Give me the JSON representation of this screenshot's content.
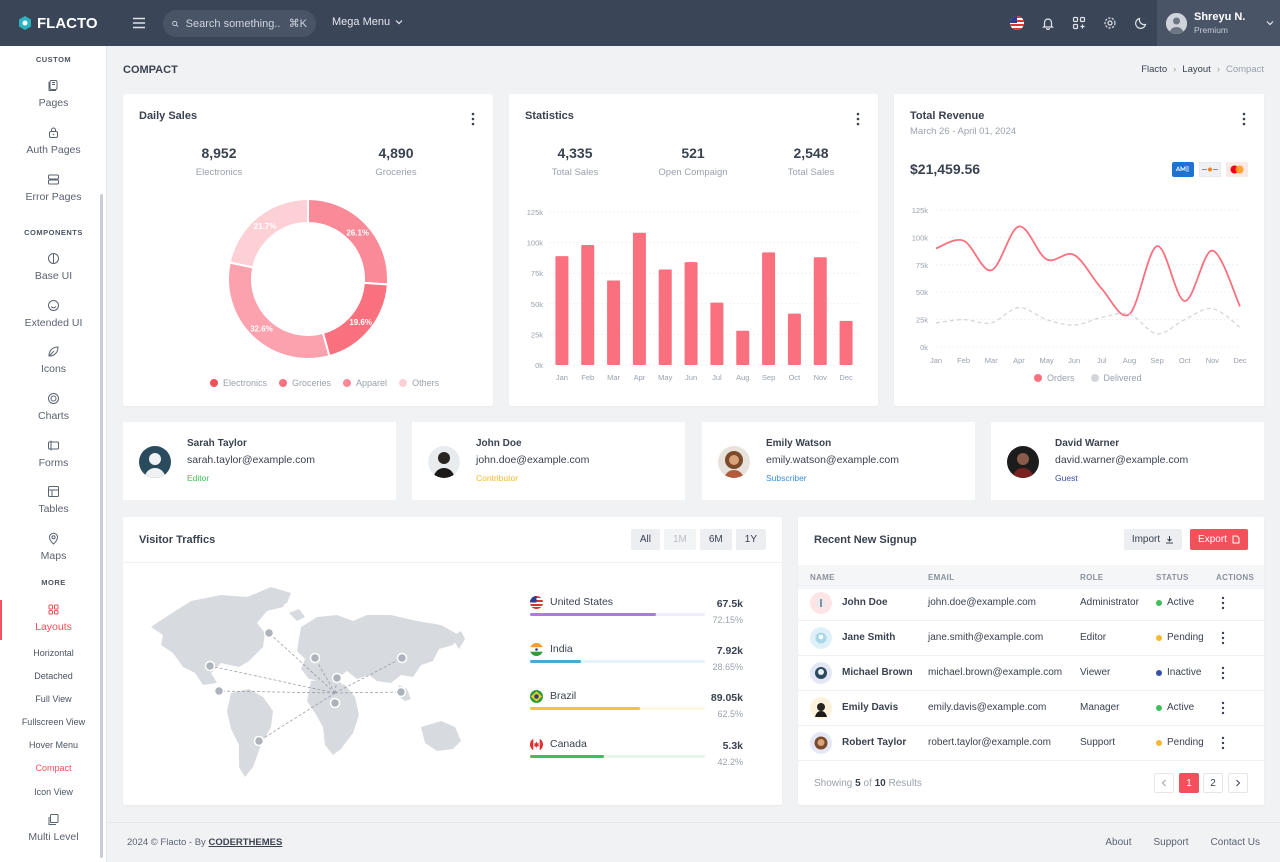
{
  "brand": {
    "name": "FLACTO"
  },
  "topbar": {
    "search_placeholder": "Search something..",
    "search_shortcut": "⌘K",
    "mega_menu": "Mega Menu",
    "user_name": "Shreyu N.",
    "user_role": "Premium",
    "icons": [
      "menu-icon",
      "search-icon",
      "us-flag-icon",
      "bell-icon",
      "apps-icon",
      "gear-icon",
      "moon-icon",
      "chevron-down-icon"
    ]
  },
  "sidebar": {
    "sections": {
      "custom": "CUSTOM",
      "components": "COMPONENTS",
      "more": "MORE"
    },
    "items": [
      {
        "label": "Pages",
        "icon": "pages-icon"
      },
      {
        "label": "Auth Pages",
        "icon": "lock-icon"
      },
      {
        "label": "Error Pages",
        "icon": "server-icon"
      },
      {
        "label": "Base UI",
        "icon": "circle-half-icon"
      },
      {
        "label": "Extended UI",
        "icon": "smile-icon"
      },
      {
        "label": "Icons",
        "icon": "leaf-icon"
      },
      {
        "label": "Charts",
        "icon": "target-icon"
      },
      {
        "label": "Forms",
        "icon": "form-icon"
      },
      {
        "label": "Tables",
        "icon": "table-icon"
      },
      {
        "label": "Maps",
        "icon": "map-pin-icon"
      },
      {
        "label": "Layouts",
        "icon": "layout-icon"
      },
      {
        "label": "Multi Level",
        "icon": "layers-icon"
      }
    ],
    "layouts_sub": [
      "Horizontal",
      "Detached",
      "Full View",
      "Fullscreen View",
      "Hover Menu",
      "Compact",
      "Icon View"
    ],
    "active_sub": "Compact"
  },
  "page": {
    "title": "COMPACT",
    "breadcrumb": [
      "Flacto",
      "Layout",
      "Compact"
    ]
  },
  "daily_sales": {
    "title": "Daily Sales",
    "stats": [
      {
        "value": "8,952",
        "label": "Electronics"
      },
      {
        "value": "4,890",
        "label": "Groceries"
      }
    ],
    "slice_labels": [
      "26.1%",
      "19.6%",
      "32.6%",
      "21.7%"
    ]
  },
  "statistics": {
    "title": "Statistics",
    "stats": [
      {
        "value": "4,335",
        "label": "Total Sales"
      },
      {
        "value": "521",
        "label": "Open Compaign"
      },
      {
        "value": "2,548",
        "label": "Total Sales"
      }
    ]
  },
  "revenue": {
    "title": "Total Revenue",
    "date_range": "March 26 - April 01, 2024",
    "amount": "$21,459.56",
    "cards": [
      "amex-icon",
      "discover-icon",
      "mastercard-icon"
    ]
  },
  "chart_data": [
    {
      "type": "pie",
      "categories": [
        "Electronics",
        "Groceries",
        "Apparel",
        "Others"
      ],
      "values": [
        26.1,
        19.6,
        32.6,
        21.7
      ],
      "colors": [
        "#fb8a98",
        "#f9717f",
        "#fba2ae",
        "#fdd0d6"
      ]
    },
    {
      "type": "bar",
      "categories": [
        "Jan",
        "Feb",
        "Mar",
        "Apr",
        "May",
        "Jun",
        "Jul",
        "Aug",
        "Sep",
        "Oct",
        "Nov",
        "Dec"
      ],
      "values": [
        89,
        98,
        69,
        108,
        78,
        84,
        51,
        28,
        92,
        42,
        88,
        36
      ],
      "y_ticks": [
        "0k",
        "25k",
        "50k",
        "75k",
        "100k",
        "125k"
      ],
      "ylim": [
        0,
        125
      ],
      "color": "#f9717f"
    },
    {
      "type": "line",
      "x": [
        "Jan",
        "Feb",
        "Mar",
        "Apr",
        "May",
        "Jun",
        "Jul",
        "Aug",
        "Sep",
        "Oct",
        "Nov",
        "Dec"
      ],
      "y_ticks": [
        "0k",
        "25k",
        "50k",
        "75k",
        "100k",
        "125k"
      ],
      "ylim": [
        0,
        125
      ],
      "series": [
        {
          "name": "Orders",
          "values": [
            90,
            97,
            70,
            110,
            80,
            84,
            53,
            30,
            92,
            42,
            88,
            37
          ],
          "color": "#f9717f"
        },
        {
          "name": "Delivered",
          "values": [
            22,
            25,
            22,
            36,
            25,
            20,
            27,
            30,
            12,
            25,
            35,
            18
          ],
          "color": "#d3d6db"
        }
      ]
    }
  ],
  "contacts": [
    {
      "name": "Sarah Taylor",
      "email": "sarah.taylor@example.com",
      "role": "Editor",
      "role_color": "#3fbf5a"
    },
    {
      "name": "John Doe",
      "email": "john.doe@example.com",
      "role": "Contributor",
      "role_color": "#f5b82e"
    },
    {
      "name": "Emily Watson",
      "email": "emily.watson@example.com",
      "role": "Subscriber",
      "role_color": "#3a8fd9"
    },
    {
      "name": "David Warner",
      "email": "david.warner@example.com",
      "role": "Guest",
      "role_color": "#3a4fa8"
    }
  ],
  "traffic": {
    "title": "Visitor Traffics",
    "filters": [
      "All",
      "1M",
      "6M",
      "1Y"
    ],
    "countries": [
      {
        "name": "United States",
        "value": "67.5k",
        "pct": "72.15%",
        "fill": 0.72,
        "color": "#a97ae8",
        "track": "#efeafc"
      },
      {
        "name": "India",
        "value": "7.92k",
        "pct": "28.65%",
        "fill": 0.29,
        "color": "#4aa8d8",
        "track": "#e7f3fa"
      },
      {
        "name": "Brazil",
        "value": "89.05k",
        "pct": "62.5%",
        "fill": 0.63,
        "color": "#f5c23a",
        "track": "#fdf6e1"
      },
      {
        "name": "Canada",
        "value": "5.3k",
        "pct": "42.2%",
        "fill": 0.42,
        "color": "#3fbf5a",
        "track": "#e6f6ea"
      }
    ]
  },
  "signup": {
    "title": "Recent New Signup",
    "import": "Import",
    "export": "Export",
    "columns": [
      "NAME",
      "EMAIL",
      "ROLE",
      "STATUS",
      "ACTIONS"
    ],
    "rows": [
      {
        "name": "John Doe",
        "email": "john.doe@example.com",
        "role": "Administrator",
        "status": "Active",
        "color": "#3fbf5a"
      },
      {
        "name": "Jane Smith",
        "email": "jane.smith@example.com",
        "role": "Editor",
        "status": "Pending",
        "color": "#f5b82e"
      },
      {
        "name": "Michael Brown",
        "email": "michael.brown@example.com",
        "role": "Viewer",
        "status": "Inactive",
        "color": "#3a4fa8"
      },
      {
        "name": "Emily Davis",
        "email": "emily.davis@example.com",
        "role": "Manager",
        "status": "Active",
        "color": "#3fbf5a"
      },
      {
        "name": "Robert Taylor",
        "email": "robert.taylor@example.com",
        "role": "Support",
        "status": "Pending",
        "color": "#f5b82e"
      }
    ],
    "showing_prefix": "Showing",
    "showing_count": "5",
    "showing_of": "of",
    "showing_total": "10",
    "showing_suffix": "Results",
    "pages": [
      "1",
      "2"
    ]
  },
  "footer": {
    "copyright": "2024 © Flacto - By",
    "author": "CODERTHEMES",
    "links": [
      "About",
      "Support",
      "Contact Us"
    ]
  }
}
